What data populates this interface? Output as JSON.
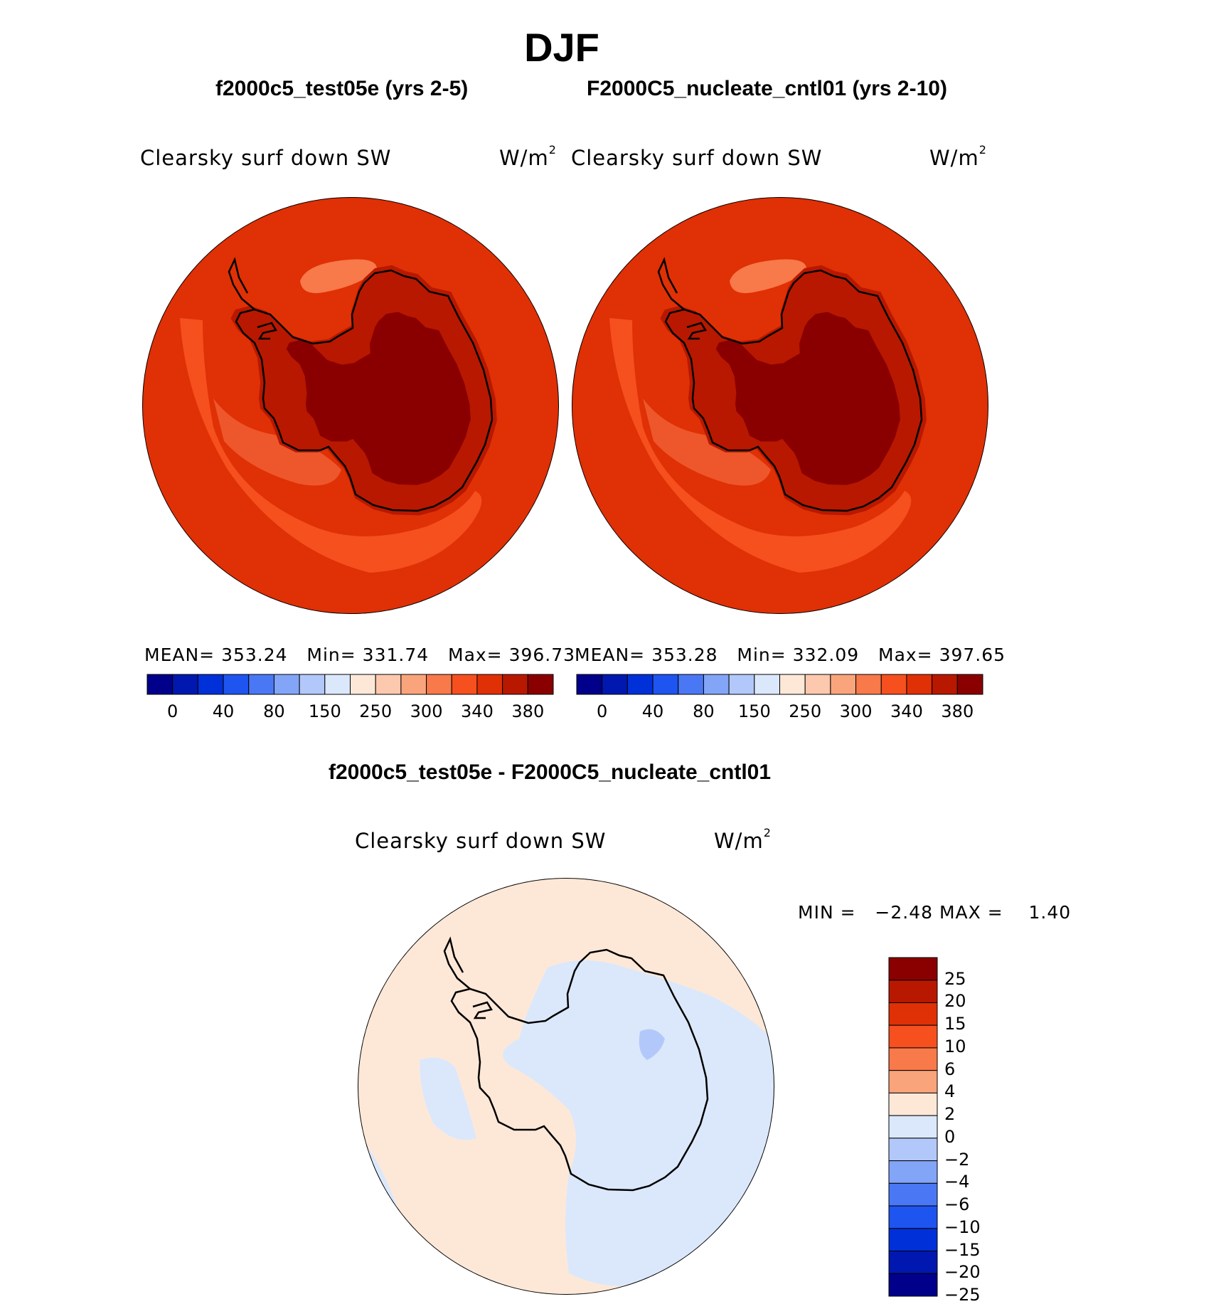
{
  "figure": {
    "title": "DJF",
    "diff_title": "f2000c5_test05e - F2000C5_nucleate_cntl01"
  },
  "panels": [
    {
      "case_title": "f2000c5_test05e (yrs 2-5)",
      "variable": "Clearsky surf down SW",
      "units_base": "W/m",
      "units_exp": "2",
      "mean_label": "MEAN=",
      "mean": "353.24",
      "min_label": "Min=",
      "min": "331.74",
      "max_label": "Max=",
      "max": "396.73"
    },
    {
      "case_title": "F2000C5_nucleate_cntl01 (yrs 2-10)",
      "variable": "Clearsky surf down SW",
      "units_base": "W/m",
      "units_exp": "2",
      "mean_label": "MEAN=",
      "mean": "353.28",
      "min_label": "Min=",
      "min": "332.09",
      "max_label": "Max=",
      "max": "397.65"
    }
  ],
  "diff_panel": {
    "variable": "Clearsky surf down SW",
    "units_base": "W/m",
    "units_exp": "2",
    "min_label": "MIN =",
    "min": "−2.48",
    "max_label": "MAX =",
    "max": "1.40"
  },
  "colorbar_abs": {
    "colors": [
      "#00008a",
      "#0018b0",
      "#0030d8",
      "#1e55f0",
      "#4a78f5",
      "#82a5f8",
      "#b3c8fa",
      "#dbe8fb",
      "#fde8d8",
      "#fcc8ae",
      "#faa47c",
      "#f8794a",
      "#f5501e",
      "#e03005",
      "#b81800",
      "#8a0000"
    ],
    "tick_labels": [
      "0",
      "40",
      "80",
      "150",
      "250",
      "300",
      "340",
      "380"
    ]
  },
  "colorbar_diff": {
    "colors": [
      "#8a0000",
      "#b81800",
      "#e03005",
      "#f5501e",
      "#f8794a",
      "#faa47c",
      "#fde8d8",
      "#dbe8fb",
      "#b3c8fa",
      "#82a5f8",
      "#4a78f5",
      "#1e55f0",
      "#0030d8",
      "#0018b0",
      "#00008a"
    ],
    "tick_labels": [
      "25",
      "20",
      "15",
      "10",
      "6",
      "4",
      "2",
      "0",
      "−2",
      "−4",
      "−6",
      "−10",
      "−15",
      "−20",
      "−25"
    ]
  },
  "map_colors": {
    "ocean_abs": "#e03005",
    "band_abs": "#f5501e",
    "patch_abs": "#f8794a",
    "coast_abs": "#b81800",
    "interior_abs": "#8a0000",
    "bg_diff": "#fde8d8",
    "neg_diff": "#dbe8fb",
    "neg2_diff": "#b3c8fa",
    "outline": "#000000"
  }
}
